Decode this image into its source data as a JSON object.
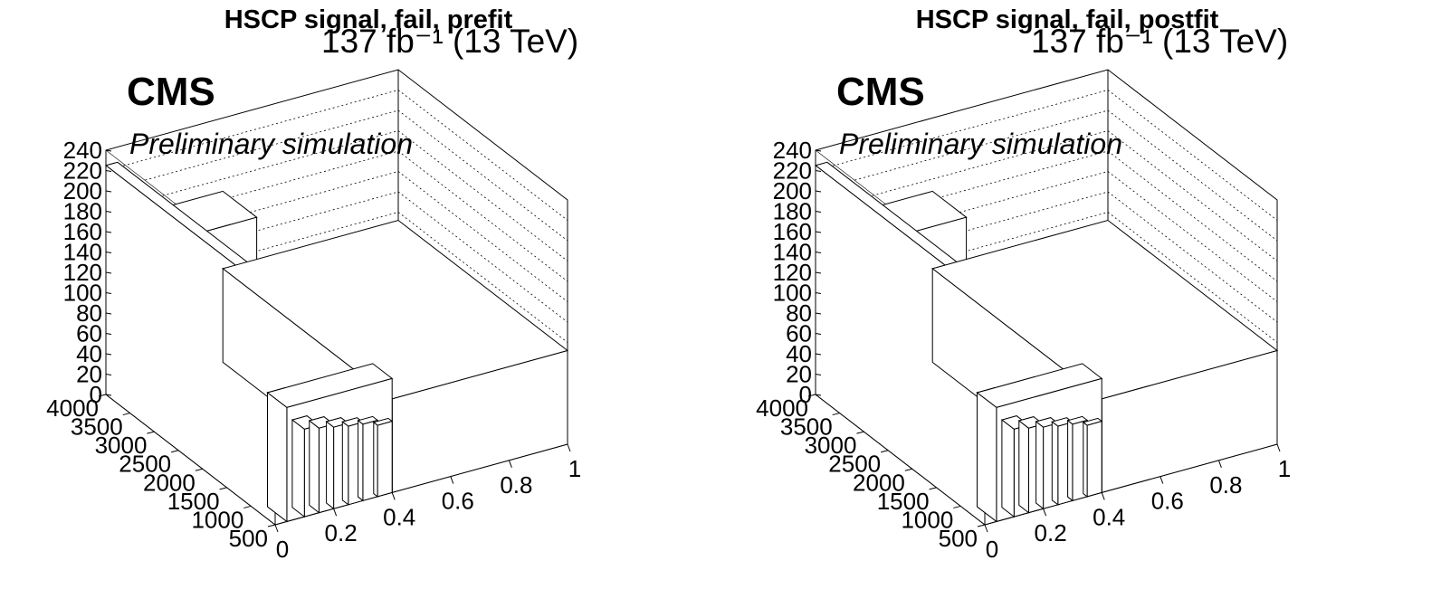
{
  "chart_data": [
    {
      "type": "bar3d",
      "title": "HSCP signal, fail, prefit",
      "lumi_label": "137 fb⁻¹ (13 TeV)",
      "cms_label": "CMS",
      "extra_label": "Preliminary simulation",
      "x_ticks": [
        "0",
        "0.2",
        "0.4",
        "0.6",
        "0.8",
        "1"
      ],
      "y_ticks": [
        "500",
        "1000",
        "1500",
        "2000",
        "2500",
        "3000",
        "3500",
        "4000"
      ],
      "z_ticks": [
        "0",
        "20",
        "40",
        "60",
        "80",
        "100",
        "120",
        "140",
        "160",
        "180",
        "200",
        "220",
        "240"
      ],
      "xlim": [
        0,
        1
      ],
      "ylim": [
        500,
        4000
      ],
      "zlim": [
        0,
        240
      ],
      "bars": [
        {
          "x": [
            0.4,
            1.0
          ],
          "y": [
            500,
            4000
          ],
          "z": 92
        },
        {
          "x": [
            0.0,
            0.04
          ],
          "y": [
            500,
            4000
          ],
          "z": 225
        },
        {
          "x": [
            0.04,
            0.4
          ],
          "y": [
            3300,
            4000
          ],
          "z": 168
        },
        {
          "x": [
            0.04,
            0.4
          ],
          "y": [
            500,
            900
          ],
          "z": 112
        },
        {
          "x": [
            0.04,
            0.1
          ],
          "y": [
            500,
            900
          ],
          "z": 112
        },
        {
          "x": [
            0.1,
            0.15
          ],
          "y": [
            500,
            750
          ],
          "z": 86
        },
        {
          "x": [
            0.15,
            0.2
          ],
          "y": [
            500,
            700
          ],
          "z": 83
        },
        {
          "x": [
            0.2,
            0.25
          ],
          "y": [
            500,
            650
          ],
          "z": 80
        },
        {
          "x": [
            0.25,
            0.3
          ],
          "y": [
            500,
            620
          ],
          "z": 77
        },
        {
          "x": [
            0.3,
            0.35
          ],
          "y": [
            500,
            600
          ],
          "z": 75
        },
        {
          "x": [
            0.35,
            0.4
          ],
          "y": [
            500,
            580
          ],
          "z": 70
        }
      ]
    },
    {
      "type": "bar3d",
      "title": "HSCP signal, fail, postfit",
      "lumi_label": "137 fb⁻¹ (13 TeV)",
      "cms_label": "CMS",
      "extra_label": "Preliminary simulation",
      "x_ticks": [
        "0",
        "0.2",
        "0.4",
        "0.6",
        "0.8",
        "1"
      ],
      "y_ticks": [
        "500",
        "1000",
        "1500",
        "2000",
        "2500",
        "3000",
        "3500",
        "4000"
      ],
      "z_ticks": [
        "0",
        "20",
        "40",
        "60",
        "80",
        "100",
        "120",
        "140",
        "160",
        "180",
        "200",
        "220",
        "240"
      ],
      "xlim": [
        0,
        1
      ],
      "ylim": [
        500,
        4000
      ],
      "zlim": [
        0,
        240
      ],
      "bars": [
        {
          "x": [
            0.4,
            1.0
          ],
          "y": [
            500,
            4000
          ],
          "z": 92
        },
        {
          "x": [
            0.0,
            0.04
          ],
          "y": [
            500,
            4000
          ],
          "z": 225
        },
        {
          "x": [
            0.04,
            0.4
          ],
          "y": [
            3300,
            4000
          ],
          "z": 168
        },
        {
          "x": [
            0.04,
            0.4
          ],
          "y": [
            500,
            900
          ],
          "z": 112
        },
        {
          "x": [
            0.04,
            0.1
          ],
          "y": [
            500,
            900
          ],
          "z": 112
        },
        {
          "x": [
            0.1,
            0.15
          ],
          "y": [
            500,
            750
          ],
          "z": 86
        },
        {
          "x": [
            0.15,
            0.2
          ],
          "y": [
            500,
            700
          ],
          "z": 83
        },
        {
          "x": [
            0.2,
            0.25
          ],
          "y": [
            500,
            650
          ],
          "z": 80
        },
        {
          "x": [
            0.25,
            0.3
          ],
          "y": [
            500,
            620
          ],
          "z": 77
        },
        {
          "x": [
            0.3,
            0.35
          ],
          "y": [
            500,
            600
          ],
          "z": 75
        },
        {
          "x": [
            0.35,
            0.4
          ],
          "y": [
            500,
            580
          ],
          "z": 70
        }
      ]
    }
  ]
}
